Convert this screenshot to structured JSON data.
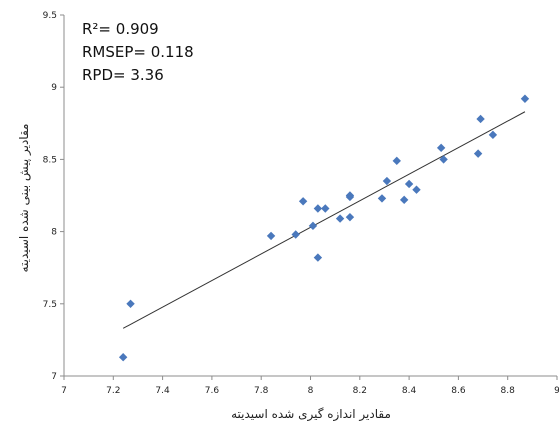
{
  "chart_data": {
    "type": "scatter",
    "title": "",
    "xlabel": "مقادیر اندازه گیری شده اسیدیته",
    "ylabel": "مقادیر پیش بینی شده اسیدیته",
    "xlim": [
      7,
      9
    ],
    "ylim": [
      7,
      9.5
    ],
    "x_ticks": [
      "7",
      "7.2",
      "7.4",
      "7.6",
      "7.8",
      "8",
      "8.2",
      "8.4",
      "8.6",
      "8.8",
      "9"
    ],
    "y_ticks": [
      "7",
      "7.5",
      "8",
      "8.5",
      "9",
      "9.5"
    ],
    "grid": false,
    "legend": "none",
    "marker": "diamond",
    "point_color": "#4a78bc",
    "line_color": "#333333",
    "annotations": [
      "R²= 0.909",
      "RMSEP= 0.118",
      "RPD= 3.36"
    ],
    "series": [
      {
        "points": [
          {
            "x": 7.24,
            "y": 7.13
          },
          {
            "x": 7.27,
            "y": 7.5
          },
          {
            "x": 7.84,
            "y": 7.97
          },
          {
            "x": 7.94,
            "y": 7.98
          },
          {
            "x": 7.97,
            "y": 8.21
          },
          {
            "x": 8.01,
            "y": 8.04
          },
          {
            "x": 8.03,
            "y": 7.82
          },
          {
            "x": 8.03,
            "y": 8.16
          },
          {
            "x": 8.06,
            "y": 8.16
          },
          {
            "x": 8.12,
            "y": 8.09
          },
          {
            "x": 8.16,
            "y": 8.1
          },
          {
            "x": 8.16,
            "y": 8.24
          },
          {
            "x": 8.16,
            "y": 8.25
          },
          {
            "x": 8.29,
            "y": 8.23
          },
          {
            "x": 8.31,
            "y": 8.35
          },
          {
            "x": 8.35,
            "y": 8.49
          },
          {
            "x": 8.38,
            "y": 8.22
          },
          {
            "x": 8.4,
            "y": 8.33
          },
          {
            "x": 8.43,
            "y": 8.29
          },
          {
            "x": 8.53,
            "y": 8.58
          },
          {
            "x": 8.54,
            "y": 8.5
          },
          {
            "x": 8.68,
            "y": 8.54
          },
          {
            "x": 8.69,
            "y": 8.78
          },
          {
            "x": 8.74,
            "y": 8.67
          },
          {
            "x": 8.87,
            "y": 8.92
          }
        ]
      }
    ],
    "trendline": [
      {
        "x": 7.24,
        "y": 7.33
      },
      {
        "x": 8.87,
        "y": 8.83
      }
    ]
  }
}
